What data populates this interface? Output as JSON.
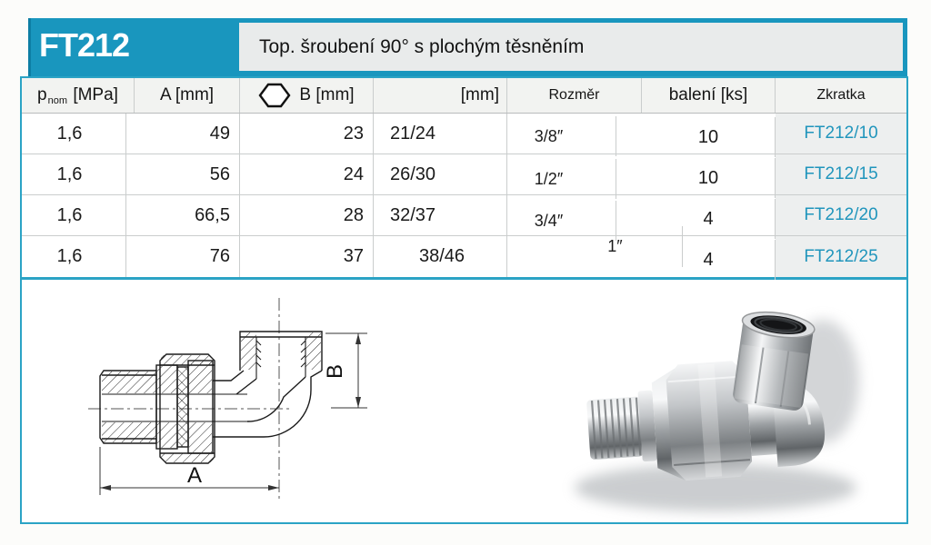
{
  "product": {
    "code": "FT212",
    "title": "Top. šroubení 90° s plochým těsněním"
  },
  "table": {
    "headers": {
      "pnom_base": "p",
      "pnom_sub": "nom",
      "pnom_unit": "[MPa]",
      "a": "A [mm]",
      "b": "B [mm]",
      "mm": "[mm]",
      "rozmer": "Rozměr",
      "baleni": "balení [ks]",
      "zkratka": "Zkratka"
    },
    "rows": [
      {
        "pnom": "1,6",
        "a": "49",
        "b": "23",
        "mm": "21/24",
        "rozmer": "3/8″",
        "baleni": "10",
        "zkratka": "FT212/10"
      },
      {
        "pnom": "1,6",
        "a": "56",
        "b": "24",
        "mm": "26/30",
        "rozmer": "1/2″",
        "baleni": "10",
        "zkratka": "FT212/15"
      },
      {
        "pnom": "1,6",
        "a": "66,5",
        "b": "28",
        "mm": "32/37",
        "rozmer": "3/4″",
        "baleni": "4",
        "zkratka": "FT212/20"
      },
      {
        "pnom": "1,6",
        "a": "76",
        "b": "37",
        "mm": "38/46",
        "rozmer": "1″",
        "baleni": "4",
        "zkratka": "FT212/25"
      }
    ]
  },
  "drawing": {
    "dim_a_label": "A",
    "dim_b_label": "B"
  },
  "icons": {
    "hexagon": "hex-wrench-size"
  },
  "colors": {
    "accent_cyan": "#1996BE",
    "border_cyan": "#2BA3C5",
    "code_text": "#FFFFFF",
    "zkratka_text": "#2095BC",
    "title_bar_bg": "#E9EBEB",
    "header_row_bg": "#F2F3F1",
    "zkratka_col_bg": "#EDEFEF",
    "grid_line": "#CACDCD"
  }
}
